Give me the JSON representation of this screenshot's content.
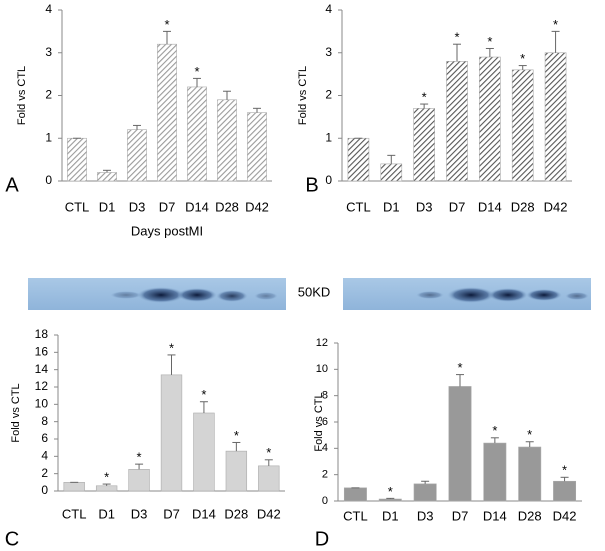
{
  "chart_data": [
    {
      "type": "bar",
      "panel": "A",
      "ylabel": "Fold vs CTL",
      "xlabel": "Days postMI",
      "categories": [
        "CTL",
        "D1",
        "D3",
        "D7",
        "D14",
        "D28",
        "D42"
      ],
      "values": [
        1,
        0.2,
        1.2,
        3.2,
        2.2,
        1.9,
        1.6
      ],
      "errors": [
        0,
        0.05,
        0.1,
        0.3,
        0.2,
        0.2,
        0.1
      ],
      "stars": [
        null,
        null,
        null,
        "*",
        "*",
        null,
        null
      ],
      "color": "#9a9a9a",
      "hatch": true,
      "ylim": [
        0,
        4
      ],
      "yticks": [
        0,
        1,
        2,
        3,
        4
      ]
    },
    {
      "type": "bar",
      "panel": "B",
      "ylabel": "Fold vs CTL",
      "categories": [
        "CTL",
        "D1",
        "D3",
        "D7",
        "D14",
        "D28",
        "D42"
      ],
      "values": [
        1,
        0.4,
        1.7,
        2.8,
        2.9,
        2.6,
        3.0
      ],
      "errors": [
        0,
        0.2,
        0.1,
        0.4,
        0.2,
        0.1,
        0.5
      ],
      "stars": [
        null,
        null,
        "*",
        "*",
        "*",
        "*",
        "*"
      ],
      "color": "#555555",
      "hatch": true,
      "ylim": [
        0,
        4
      ],
      "yticks": [
        0,
        1,
        2,
        3,
        4
      ]
    },
    {
      "type": "bar",
      "panel": "C",
      "ylabel": "Fold vs CTL",
      "blot_label": "50KD",
      "categories": [
        "CTL",
        "D1",
        "D3",
        "D7",
        "D14",
        "D28",
        "D42"
      ],
      "values": [
        1,
        0.6,
        2.5,
        13.4,
        9.0,
        4.6,
        2.9
      ],
      "errors": [
        0,
        0.2,
        0.6,
        2.3,
        1.3,
        1.0,
        0.7
      ],
      "stars": [
        null,
        "*",
        "*",
        "*",
        "*",
        "*",
        "*"
      ],
      "color": "#d4d4d4",
      "hatch": false,
      "ylim": [
        0,
        18
      ],
      "yticks": [
        0,
        2,
        4,
        6,
        8,
        10,
        12,
        14,
        16,
        18
      ]
    },
    {
      "type": "bar",
      "panel": "D",
      "ylabel": "Fold vs CTL",
      "categories": [
        "CTL",
        "D1",
        "D3",
        "D7",
        "D14",
        "D28",
        "D42"
      ],
      "values": [
        1,
        0.15,
        1.3,
        8.7,
        4.4,
        4.1,
        1.5
      ],
      "errors": [
        0,
        0.05,
        0.2,
        0.9,
        0.4,
        0.4,
        0.3
      ],
      "stars": [
        null,
        "*",
        null,
        "*",
        "*",
        "*",
        "*"
      ],
      "color": "#999999",
      "hatch": false,
      "ylim": [
        0,
        12
      ],
      "yticks": [
        0,
        2,
        4,
        6,
        8,
        10,
        12
      ]
    }
  ]
}
